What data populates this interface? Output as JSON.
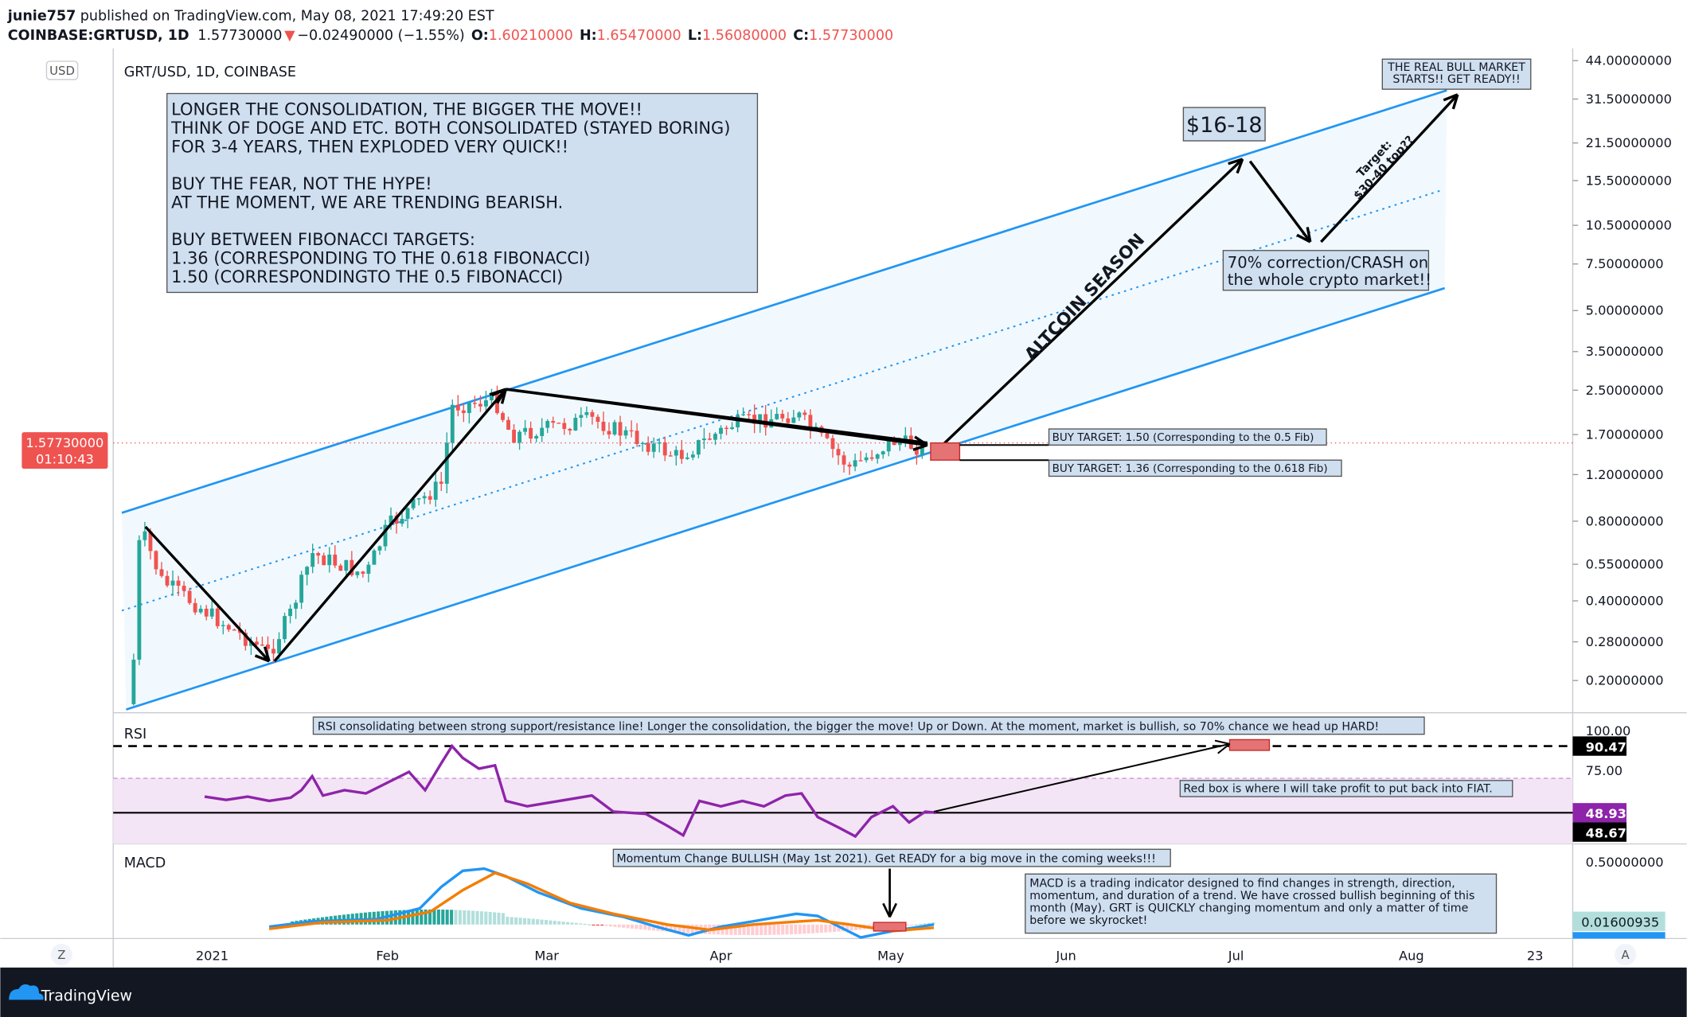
{
  "header": {
    "publisher": "junie757",
    "published": "published on TradingView.com, May 08, 2021 17:49:20 EST",
    "symbol": "COINBASE:GRTUSD, 1D",
    "last": "1.57730000",
    "change": "−0.02490000 (−1.55%)",
    "o_label": "O:",
    "o": "1.60210000",
    "h_label": "H:",
    "h": "1.65470000",
    "l_label": "L:",
    "l": "1.56080000",
    "c_label": "C:",
    "c": "1.57730000"
  },
  "chart": {
    "legend": "GRT/USD, 1D, COINBASE",
    "currency": "USD",
    "price_axis": [
      "44.00000000",
      "31.50000000",
      "21.50000000",
      "15.50000000",
      "10.50000000",
      "7.50000000",
      "5.00000000",
      "3.50000000",
      "2.50000000",
      "1.70000000",
      "1.20000000",
      "0.80000000",
      "0.55000000",
      "0.40000000",
      "0.28000000",
      "0.20000000"
    ],
    "price_tag": "1.57730000",
    "countdown": "01:10:43",
    "main_note": [
      "LONGER THE CONSOLIDATION, THE BIGGER THE MOVE!!",
      "THINK OF DOGE AND ETC. BOTH CONSOLIDATED (STAYED BORING)",
      "FOR 3-4 YEARS, THEN EXPLODED VERY QUICK!!",
      "",
      "BUY THE FEAR, NOT THE HYPE!",
      "AT THE MOMENT, WE ARE TRENDING BEARISH.",
      "",
      "BUY BETWEEN FIBONACCI TARGETS:",
      "1.36 (CORRESPONDING TO THE 0.618 FIBONACCI)",
      "1.50 (CORRESPONDINGTO THE 0.5 FIBONACCI)"
    ],
    "target_box": "$16-18",
    "bull_note": [
      "THE REAL BULL MARKET",
      "STARTS!! GET READY!!"
    ],
    "crash_note": [
      "70% correction/CRASH on",
      "the whole crypto market!!"
    ],
    "target_rotated": [
      "Target:",
      "$30-40 top??"
    ],
    "altcoin": "ALTCOIN SEASON",
    "buy1": "BUY TARGET: 1.50 (Corresponding to the 0.5 Fib)",
    "buy2": "BUY TARGET: 1.36 (Corresponding to the 0.618 Fib)"
  },
  "rsi": {
    "label": "RSI",
    "axis": [
      "100.00",
      "75.00"
    ],
    "tags": [
      "90.47",
      "48.93",
      "48.67"
    ],
    "note": "RSI consolidating between strong support/resistance line! Longer the consolidation, the bigger the move! Up or Down.  At the moment, market is bullish, so 70% chance we head up HARD!",
    "note2": "Red box is where I will take profit to put back into FIAT."
  },
  "macd": {
    "label": "MACD",
    "axis": [
      "0.50000000"
    ],
    "tag": "0.01600935",
    "note": "Momentum Change BULLISH (May 1st 2021). Get READY for a big move in the coming weeks!!!",
    "note2": [
      "MACD is a trading indicator designed to find changes in strength, direction,",
      "momentum, and duration of a trend. We have crossed bullish beginning of this",
      "month (May). GRT is QUICKLY changing momentum and only a matter of time",
      "before we skyrocket!"
    ]
  },
  "time_axis": [
    "2021",
    "Feb",
    "Mar",
    "Apr",
    "May",
    "Jun",
    "Jul",
    "Aug",
    "23"
  ],
  "buttons": [
    "Z",
    "A"
  ],
  "footer": {
    "brand": "TradingView"
  }
}
